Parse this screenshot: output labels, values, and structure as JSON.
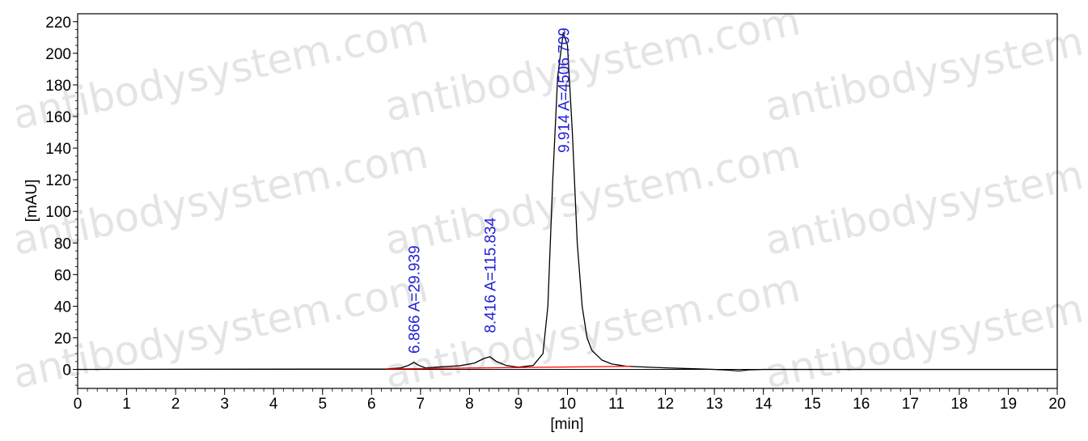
{
  "chart_data": {
    "type": "line",
    "title": "",
    "xlabel": "[min]",
    "ylabel": "[mAU]",
    "xlim": [
      0,
      20
    ],
    "ylim": [
      -12,
      225
    ],
    "x_ticks": [
      "0",
      "1",
      "2",
      "3",
      "4",
      "5",
      "6",
      "7",
      "8",
      "9",
      "10",
      "11",
      "12",
      "13",
      "14",
      "15",
      "16",
      "17",
      "18",
      "19",
      "20"
    ],
    "y_ticks": [
      "0",
      "20",
      "40",
      "60",
      "80",
      "100",
      "120",
      "140",
      "160",
      "180",
      "200",
      "220"
    ],
    "grid": false,
    "legend": "none",
    "series": [
      {
        "color": "#000000",
        "x": [
          0,
          6.3,
          6.6,
          6.75,
          6.866,
          6.95,
          7.1,
          7.4,
          7.8,
          8.1,
          8.3,
          8.416,
          8.55,
          8.75,
          9.0,
          9.3,
          9.5,
          9.6,
          9.7,
          9.8,
          9.914,
          10.0,
          10.1,
          10.2,
          10.3,
          10.4,
          10.5,
          10.7,
          10.9,
          11.2,
          11.6,
          12.0,
          12.5,
          13.0,
          13.3,
          13.5,
          13.7,
          14.0,
          14.5,
          15.0,
          16.0,
          17.0,
          18.0,
          19.0,
          20.0
        ],
        "y": [
          0,
          0.3,
          1.0,
          2.5,
          4.5,
          2.8,
          1.0,
          1.6,
          2.3,
          4.0,
          7.0,
          8.0,
          5.0,
          2.5,
          1.4,
          2.5,
          10.0,
          40.0,
          120.0,
          185.0,
          213.0,
          205.0,
          150.0,
          80.0,
          40.0,
          20.0,
          12.0,
          6.0,
          3.5,
          2.0,
          1.5,
          1.0,
          0.5,
          0.0,
          -0.5,
          -1.0,
          -0.3,
          0.0,
          0.0,
          0.0,
          0.0,
          0.0,
          0.0,
          0.0,
          0.0
        ]
      },
      {
        "color": "#ff0000",
        "x": [
          6.3,
          11.3
        ],
        "y": [
          0.3,
          2.0
        ]
      }
    ],
    "annotations": [
      {
        "text": "6.866 A=29.939",
        "x": 6.866,
        "y": 10
      },
      {
        "text": "8.416 A=115.834",
        "x": 8.416,
        "y": 23
      },
      {
        "text": "9.914 A=4506.709",
        "x": 9.914,
        "y": 137
      }
    ]
  },
  "watermark": "antibodysystem.com"
}
